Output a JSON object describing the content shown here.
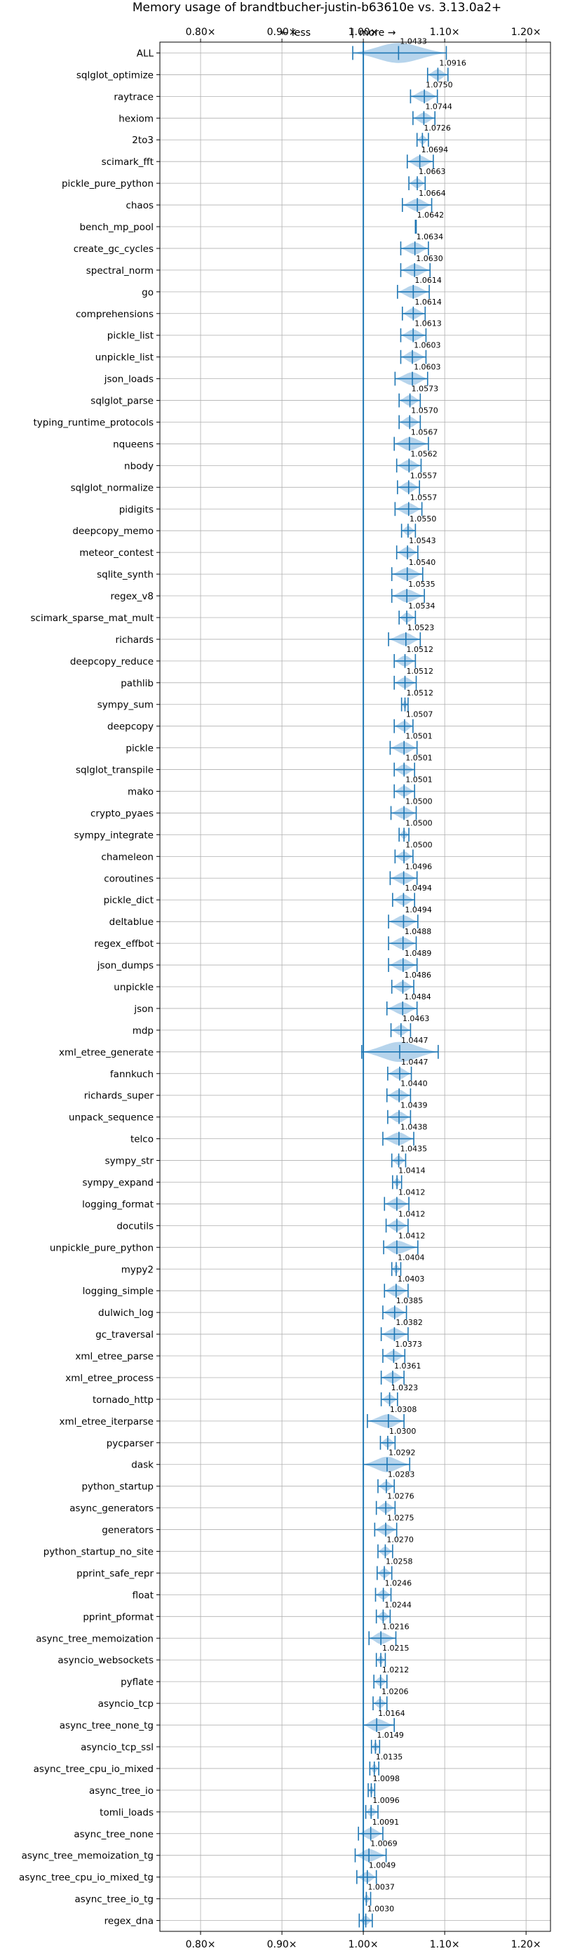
{
  "chart_data": {
    "type": "violin",
    "title": "Memory usage of brandtbucher-justin-b63610e vs. 3.13.0a2+",
    "annotation_left": "← less",
    "annotation_sep": "|",
    "annotation_right": "more →",
    "xlim": [
      0.75,
      1.23
    ],
    "xticks": [
      0.8,
      0.9,
      1.0,
      1.1,
      1.2
    ],
    "xtick_labels": [
      "0.80×",
      "0.90×",
      "1.00×",
      "1.10×",
      "1.20×"
    ],
    "reference_line": 1.0,
    "grid": true,
    "colors": {
      "violin": "#a9cde9",
      "line": "#1f77b4",
      "grid": "#b0b0b0"
    },
    "benchmarks": [
      {
        "name": "ALL",
        "value": 1.0433,
        "value_label": "1.0433",
        "min": 0.987,
        "max": 1.102
      },
      {
        "name": "sqlglot_optimize",
        "value": 1.0916,
        "value_label": "1.0916",
        "min": 1.079,
        "max": 1.104
      },
      {
        "name": "raytrace",
        "value": 1.075,
        "value_label": "1.0750",
        "min": 1.058,
        "max": 1.091
      },
      {
        "name": "hexiom",
        "value": 1.0744,
        "value_label": "1.0744",
        "min": 1.061,
        "max": 1.088
      },
      {
        "name": "2to3",
        "value": 1.0726,
        "value_label": "1.0726",
        "min": 1.066,
        "max": 1.08
      },
      {
        "name": "scimark_fft",
        "value": 1.0694,
        "value_label": "1.0694",
        "min": 1.054,
        "max": 1.086
      },
      {
        "name": "pickle_pure_python",
        "value": 1.0663,
        "value_label": "1.0663",
        "min": 1.056,
        "max": 1.076
      },
      {
        "name": "chaos",
        "value": 1.0664,
        "value_label": "1.0664",
        "min": 1.048,
        "max": 1.084
      },
      {
        "name": "bench_mp_pool",
        "value": 1.0642,
        "value_label": "1.0642",
        "min": 1.064,
        "max": 1.065
      },
      {
        "name": "create_gc_cycles",
        "value": 1.0634,
        "value_label": "1.0634",
        "min": 1.046,
        "max": 1.08
      },
      {
        "name": "spectral_norm",
        "value": 1.063,
        "value_label": "1.0630",
        "min": 1.046,
        "max": 1.082
      },
      {
        "name": "go",
        "value": 1.0614,
        "value_label": "1.0614",
        "min": 1.042,
        "max": 1.081
      },
      {
        "name": "comprehensions",
        "value": 1.0614,
        "value_label": "1.0614",
        "min": 1.048,
        "max": 1.076
      },
      {
        "name": "pickle_list",
        "value": 1.0613,
        "value_label": "1.0613",
        "min": 1.046,
        "max": 1.077
      },
      {
        "name": "unpickle_list",
        "value": 1.0603,
        "value_label": "1.0603",
        "min": 1.046,
        "max": 1.077
      },
      {
        "name": "json_loads",
        "value": 1.0603,
        "value_label": "1.0603",
        "min": 1.039,
        "max": 1.079
      },
      {
        "name": "sqlglot_parse",
        "value": 1.0573,
        "value_label": "1.0573",
        "min": 1.044,
        "max": 1.07
      },
      {
        "name": "typing_runtime_protocols",
        "value": 1.057,
        "value_label": "1.0570",
        "min": 1.044,
        "max": 1.07
      },
      {
        "name": "nqueens",
        "value": 1.0567,
        "value_label": "1.0567",
        "min": 1.038,
        "max": 1.08
      },
      {
        "name": "nbody",
        "value": 1.0562,
        "value_label": "1.0562",
        "min": 1.041,
        "max": 1.071
      },
      {
        "name": "sqlglot_normalize",
        "value": 1.0557,
        "value_label": "1.0557",
        "min": 1.042,
        "max": 1.069
      },
      {
        "name": "pidigits",
        "value": 1.0557,
        "value_label": "1.0557",
        "min": 1.039,
        "max": 1.072
      },
      {
        "name": "deepcopy_memo",
        "value": 1.055,
        "value_label": "1.0550",
        "min": 1.047,
        "max": 1.064
      },
      {
        "name": "meteor_contest",
        "value": 1.0543,
        "value_label": "1.0543",
        "min": 1.041,
        "max": 1.067
      },
      {
        "name": "sqlite_synth",
        "value": 1.054,
        "value_label": "1.0540",
        "min": 1.035,
        "max": 1.073
      },
      {
        "name": "regex_v8",
        "value": 1.0535,
        "value_label": "1.0535",
        "min": 1.035,
        "max": 1.075
      },
      {
        "name": "scimark_sparse_mat_mult",
        "value": 1.0534,
        "value_label": "1.0534",
        "min": 1.044,
        "max": 1.064
      },
      {
        "name": "richards",
        "value": 1.0523,
        "value_label": "1.0523",
        "min": 1.031,
        "max": 1.07
      },
      {
        "name": "deepcopy_reduce",
        "value": 1.0512,
        "value_label": "1.0512",
        "min": 1.038,
        "max": 1.064
      },
      {
        "name": "pathlib",
        "value": 1.0512,
        "value_label": "1.0512",
        "min": 1.038,
        "max": 1.065
      },
      {
        "name": "sympy_sum",
        "value": 1.0512,
        "value_label": "1.0512",
        "min": 1.047,
        "max": 1.055
      },
      {
        "name": "deepcopy",
        "value": 1.0507,
        "value_label": "1.0507",
        "min": 1.038,
        "max": 1.061
      },
      {
        "name": "pickle",
        "value": 1.0501,
        "value_label": "1.0501",
        "min": 1.033,
        "max": 1.066
      },
      {
        "name": "sqlglot_transpile",
        "value": 1.0501,
        "value_label": "1.0501",
        "min": 1.038,
        "max": 1.063
      },
      {
        "name": "mako",
        "value": 1.0501,
        "value_label": "1.0501",
        "min": 1.038,
        "max": 1.063
      },
      {
        "name": "crypto_pyaes",
        "value": 1.05,
        "value_label": "1.0500",
        "min": 1.034,
        "max": 1.065
      },
      {
        "name": "sympy_integrate",
        "value": 1.05,
        "value_label": "1.0500",
        "min": 1.044,
        "max": 1.056
      },
      {
        "name": "chameleon",
        "value": 1.05,
        "value_label": "1.0500",
        "min": 1.039,
        "max": 1.061
      },
      {
        "name": "coroutines",
        "value": 1.0496,
        "value_label": "1.0496",
        "min": 1.033,
        "max": 1.066
      },
      {
        "name": "pickle_dict",
        "value": 1.0494,
        "value_label": "1.0494",
        "min": 1.036,
        "max": 1.063
      },
      {
        "name": "deltablue",
        "value": 1.0494,
        "value_label": "1.0494",
        "min": 1.031,
        "max": 1.067
      },
      {
        "name": "regex_effbot",
        "value": 1.0488,
        "value_label": "1.0488",
        "min": 1.031,
        "max": 1.065
      },
      {
        "name": "json_dumps",
        "value": 1.0489,
        "value_label": "1.0489",
        "min": 1.031,
        "max": 1.066
      },
      {
        "name": "unpickle",
        "value": 1.0486,
        "value_label": "1.0486",
        "min": 1.035,
        "max": 1.062
      },
      {
        "name": "json",
        "value": 1.0484,
        "value_label": "1.0484",
        "min": 1.029,
        "max": 1.066
      },
      {
        "name": "mdp",
        "value": 1.0463,
        "value_label": "1.0463",
        "min": 1.034,
        "max": 1.058
      },
      {
        "name": "xml_etree_generate",
        "value": 1.0447,
        "value_label": "1.0447",
        "min": 0.998,
        "max": 1.092
      },
      {
        "name": "fannkuch",
        "value": 1.0447,
        "value_label": "1.0447",
        "min": 1.03,
        "max": 1.059
      },
      {
        "name": "richards_super",
        "value": 1.044,
        "value_label": "1.0440",
        "min": 1.029,
        "max": 1.058
      },
      {
        "name": "unpack_sequence",
        "value": 1.0439,
        "value_label": "1.0439",
        "min": 1.03,
        "max": 1.058
      },
      {
        "name": "telco",
        "value": 1.0438,
        "value_label": "1.0438",
        "min": 1.024,
        "max": 1.062
      },
      {
        "name": "sympy_str",
        "value": 1.0435,
        "value_label": "1.0435",
        "min": 1.035,
        "max": 1.052
      },
      {
        "name": "sympy_expand",
        "value": 1.0414,
        "value_label": "1.0414",
        "min": 1.036,
        "max": 1.047
      },
      {
        "name": "logging_format",
        "value": 1.0412,
        "value_label": "1.0412",
        "min": 1.026,
        "max": 1.056
      },
      {
        "name": "docutils",
        "value": 1.0412,
        "value_label": "1.0412",
        "min": 1.028,
        "max": 1.055
      },
      {
        "name": "unpickle_pure_python",
        "value": 1.0412,
        "value_label": "1.0412",
        "min": 1.025,
        "max": 1.067
      },
      {
        "name": "mypy2",
        "value": 1.0404,
        "value_label": "1.0404",
        "min": 1.035,
        "max": 1.046
      },
      {
        "name": "logging_simple",
        "value": 1.0403,
        "value_label": "1.0403",
        "min": 1.026,
        "max": 1.055
      },
      {
        "name": "dulwich_log",
        "value": 1.0385,
        "value_label": "1.0385",
        "min": 1.024,
        "max": 1.053
      },
      {
        "name": "gc_traversal",
        "value": 1.0382,
        "value_label": "1.0382",
        "min": 1.022,
        "max": 1.055
      },
      {
        "name": "xml_etree_parse",
        "value": 1.0373,
        "value_label": "1.0373",
        "min": 1.024,
        "max": 1.051
      },
      {
        "name": "xml_etree_process",
        "value": 1.0361,
        "value_label": "1.0361",
        "min": 1.022,
        "max": 1.05
      },
      {
        "name": "tornado_http",
        "value": 1.0323,
        "value_label": "1.0323",
        "min": 1.022,
        "max": 1.042
      },
      {
        "name": "xml_etree_iterparse",
        "value": 1.0308,
        "value_label": "1.0308",
        "min": 1.005,
        "max": 1.05
      },
      {
        "name": "pycparser",
        "value": 1.03,
        "value_label": "1.0300",
        "min": 1.021,
        "max": 1.039
      },
      {
        "name": "dask",
        "value": 1.0292,
        "value_label": "1.0292",
        "min": 1.0,
        "max": 1.057
      },
      {
        "name": "python_startup",
        "value": 1.0283,
        "value_label": "1.0283",
        "min": 1.018,
        "max": 1.038
      },
      {
        "name": "async_generators",
        "value": 1.0276,
        "value_label": "1.0276",
        "min": 1.016,
        "max": 1.039
      },
      {
        "name": "generators",
        "value": 1.0275,
        "value_label": "1.0275",
        "min": 1.014,
        "max": 1.041
      },
      {
        "name": "python_startup_no_site",
        "value": 1.027,
        "value_label": "1.0270",
        "min": 1.018,
        "max": 1.036
      },
      {
        "name": "pprint_safe_repr",
        "value": 1.0258,
        "value_label": "1.0258",
        "min": 1.017,
        "max": 1.035
      },
      {
        "name": "float",
        "value": 1.0246,
        "value_label": "1.0246",
        "min": 1.015,
        "max": 1.034
      },
      {
        "name": "pprint_pformat",
        "value": 1.0244,
        "value_label": "1.0244",
        "min": 1.016,
        "max": 1.033
      },
      {
        "name": "async_tree_memoization",
        "value": 1.0216,
        "value_label": "1.0216",
        "min": 1.007,
        "max": 1.04
      },
      {
        "name": "asyncio_websockets",
        "value": 1.0215,
        "value_label": "1.0215",
        "min": 1.016,
        "max": 1.027
      },
      {
        "name": "pyflate",
        "value": 1.0212,
        "value_label": "1.0212",
        "min": 1.013,
        "max": 1.029
      },
      {
        "name": "asyncio_tcp",
        "value": 1.0206,
        "value_label": "1.0206",
        "min": 1.012,
        "max": 1.029
      },
      {
        "name": "async_tree_none_tg",
        "value": 1.0164,
        "value_label": "1.0164",
        "min": 1.0,
        "max": 1.038
      },
      {
        "name": "asyncio_tcp_ssl",
        "value": 1.0149,
        "value_label": "1.0149",
        "min": 1.01,
        "max": 1.02
      },
      {
        "name": "async_tree_cpu_io_mixed",
        "value": 1.0135,
        "value_label": "1.0135",
        "min": 1.008,
        "max": 1.019
      },
      {
        "name": "async_tree_io",
        "value": 1.0098,
        "value_label": "1.0098",
        "min": 1.006,
        "max": 1.014
      },
      {
        "name": "tomli_loads",
        "value": 1.0096,
        "value_label": "1.0096",
        "min": 1.003,
        "max": 1.018
      },
      {
        "name": "async_tree_none",
        "value": 1.0091,
        "value_label": "1.0091",
        "min": 0.994,
        "max": 1.024
      },
      {
        "name": "async_tree_memoization_tg",
        "value": 1.0069,
        "value_label": "1.0069",
        "min": 0.99,
        "max": 1.028
      },
      {
        "name": "async_tree_cpu_io_mixed_tg",
        "value": 1.0049,
        "value_label": "1.0049",
        "min": 0.992,
        "max": 1.016
      },
      {
        "name": "async_tree_io_tg",
        "value": 1.0037,
        "value_label": "1.0037",
        "min": 1.0,
        "max": 1.009
      },
      {
        "name": "regex_dna",
        "value": 1.003,
        "value_label": "1.0030",
        "min": 0.995,
        "max": 1.011
      }
    ]
  }
}
